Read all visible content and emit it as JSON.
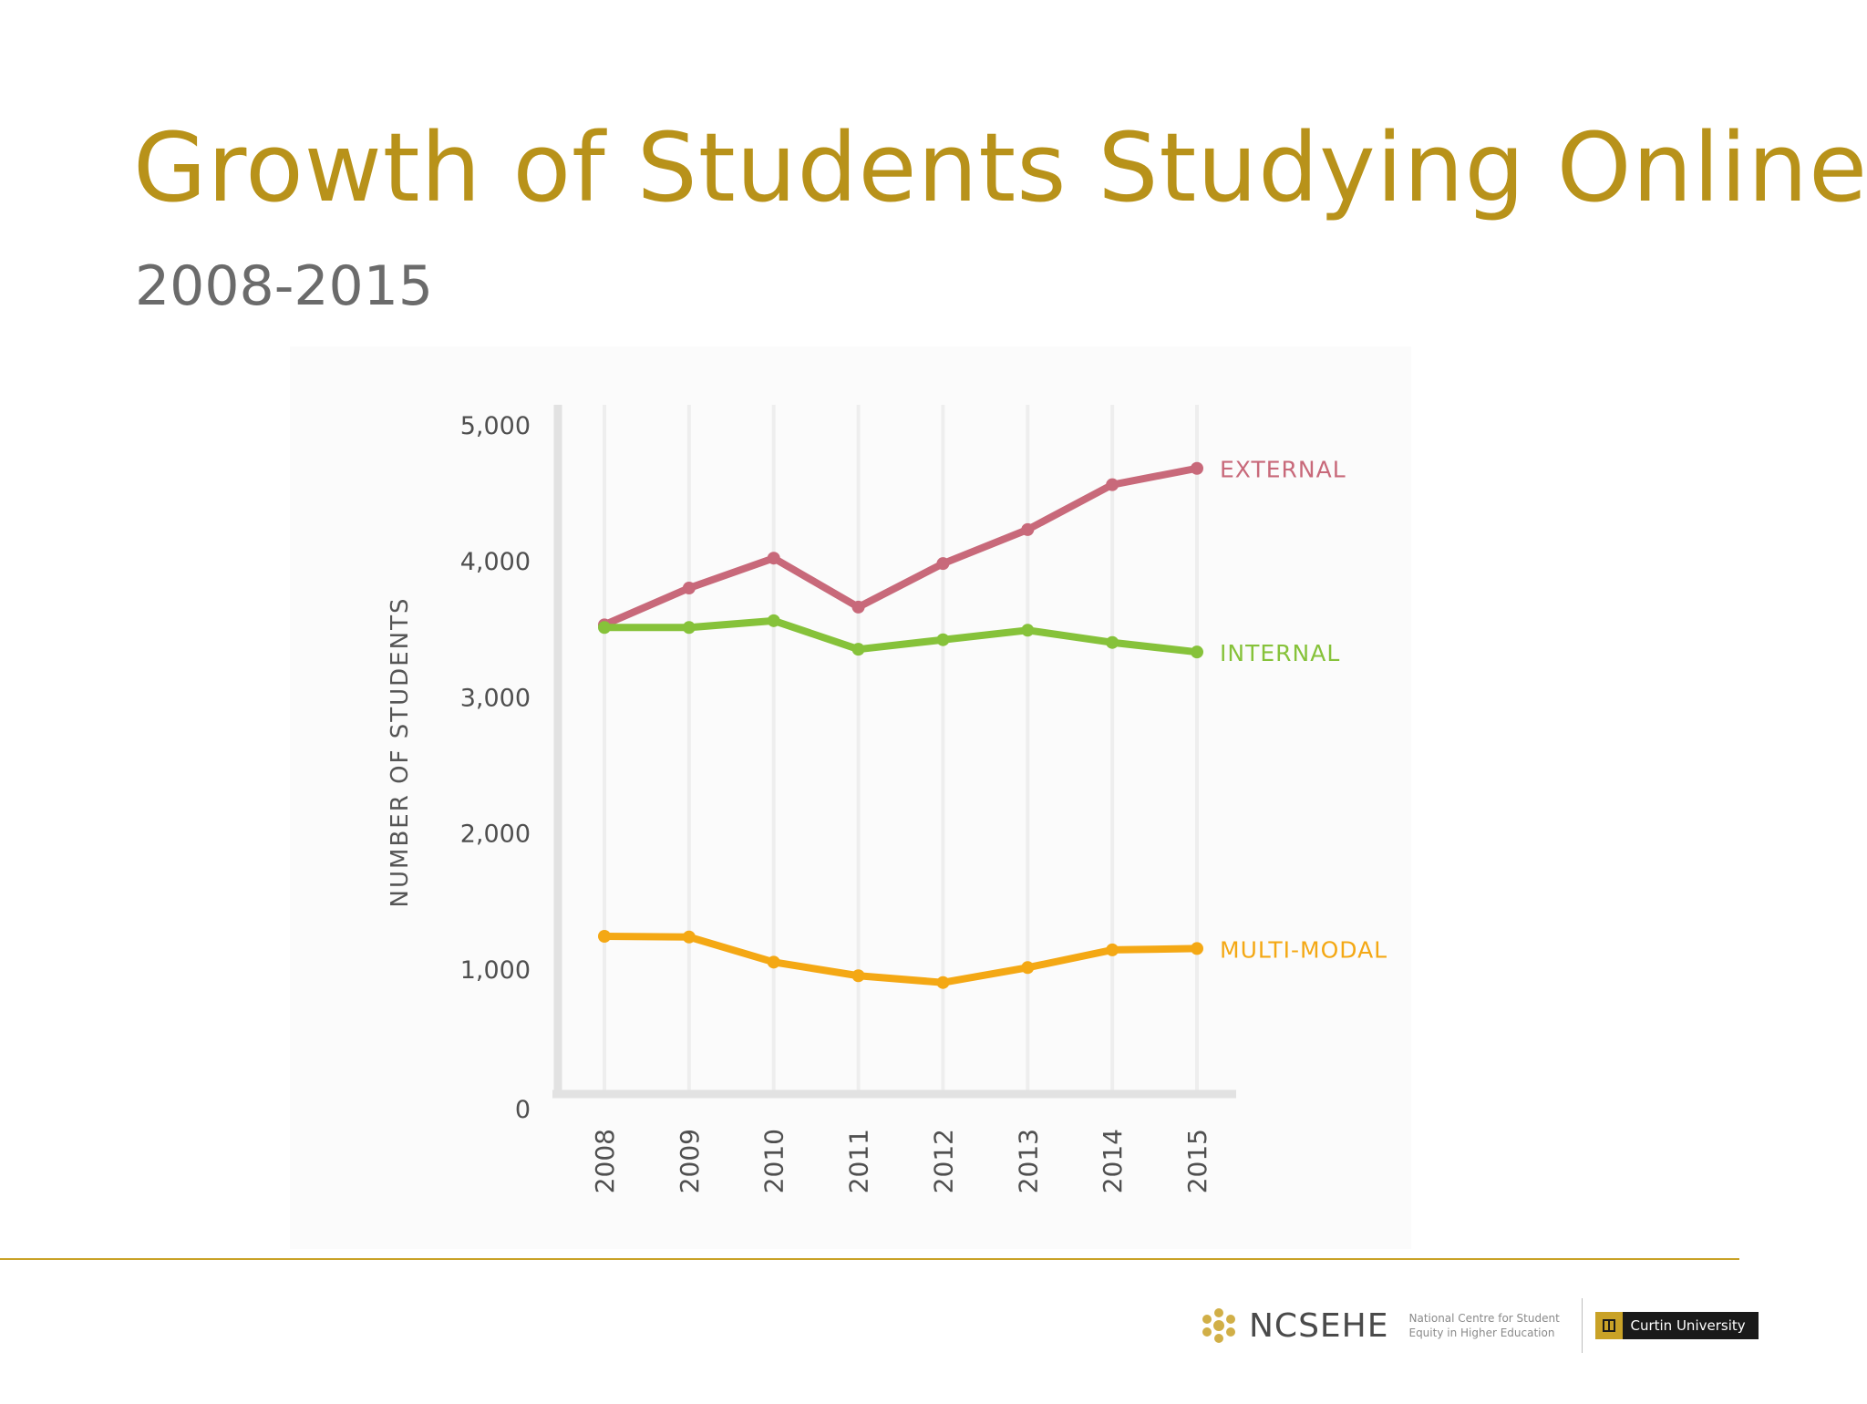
{
  "slide": {
    "title": "Growth of Students Studying Online",
    "subtitle": "2008-2015"
  },
  "colors": {
    "title": "#b8921a",
    "subtitle": "#6b6b6b",
    "rule": "#c9a227",
    "external": "#c8697a",
    "internal": "#86c23a",
    "multimodal": "#f4a814"
  },
  "chart_data": {
    "type": "line",
    "x": [
      "2008",
      "2009",
      "2010",
      "2011",
      "2012",
      "2013",
      "2014",
      "2015"
    ],
    "ylabel": "NUMBER OF STUDENTS",
    "ylim": [
      0,
      5000
    ],
    "yticks": [
      "0",
      "1,000",
      "2,000",
      "3,000",
      "4,000",
      "5,000"
    ],
    "grid": "vertical",
    "legend": "labels at line ends (right)",
    "series": [
      {
        "name": "EXTERNAL",
        "color": "#c8697a",
        "values": [
          3530,
          3800,
          4020,
          3660,
          3980,
          4230,
          4560,
          4680
        ]
      },
      {
        "name": "INTERNAL",
        "color": "#86c23a",
        "values": [
          3510,
          3510,
          3560,
          3350,
          3420,
          3490,
          3400,
          3330
        ]
      },
      {
        "name": "MULTI-MODAL",
        "color": "#f4a814",
        "values": [
          1240,
          1235,
          1050,
          950,
          900,
          1010,
          1140,
          1150
        ]
      }
    ]
  },
  "footer": {
    "org_name": "NCSEHE",
    "org_tagline_1": "National Centre for Student",
    "org_tagline_2": "Equity in Higher Education",
    "university": "Curtin University"
  },
  "icons": {
    "org": "ncsehe-logo-icon",
    "university": "curtin-crest-icon"
  }
}
